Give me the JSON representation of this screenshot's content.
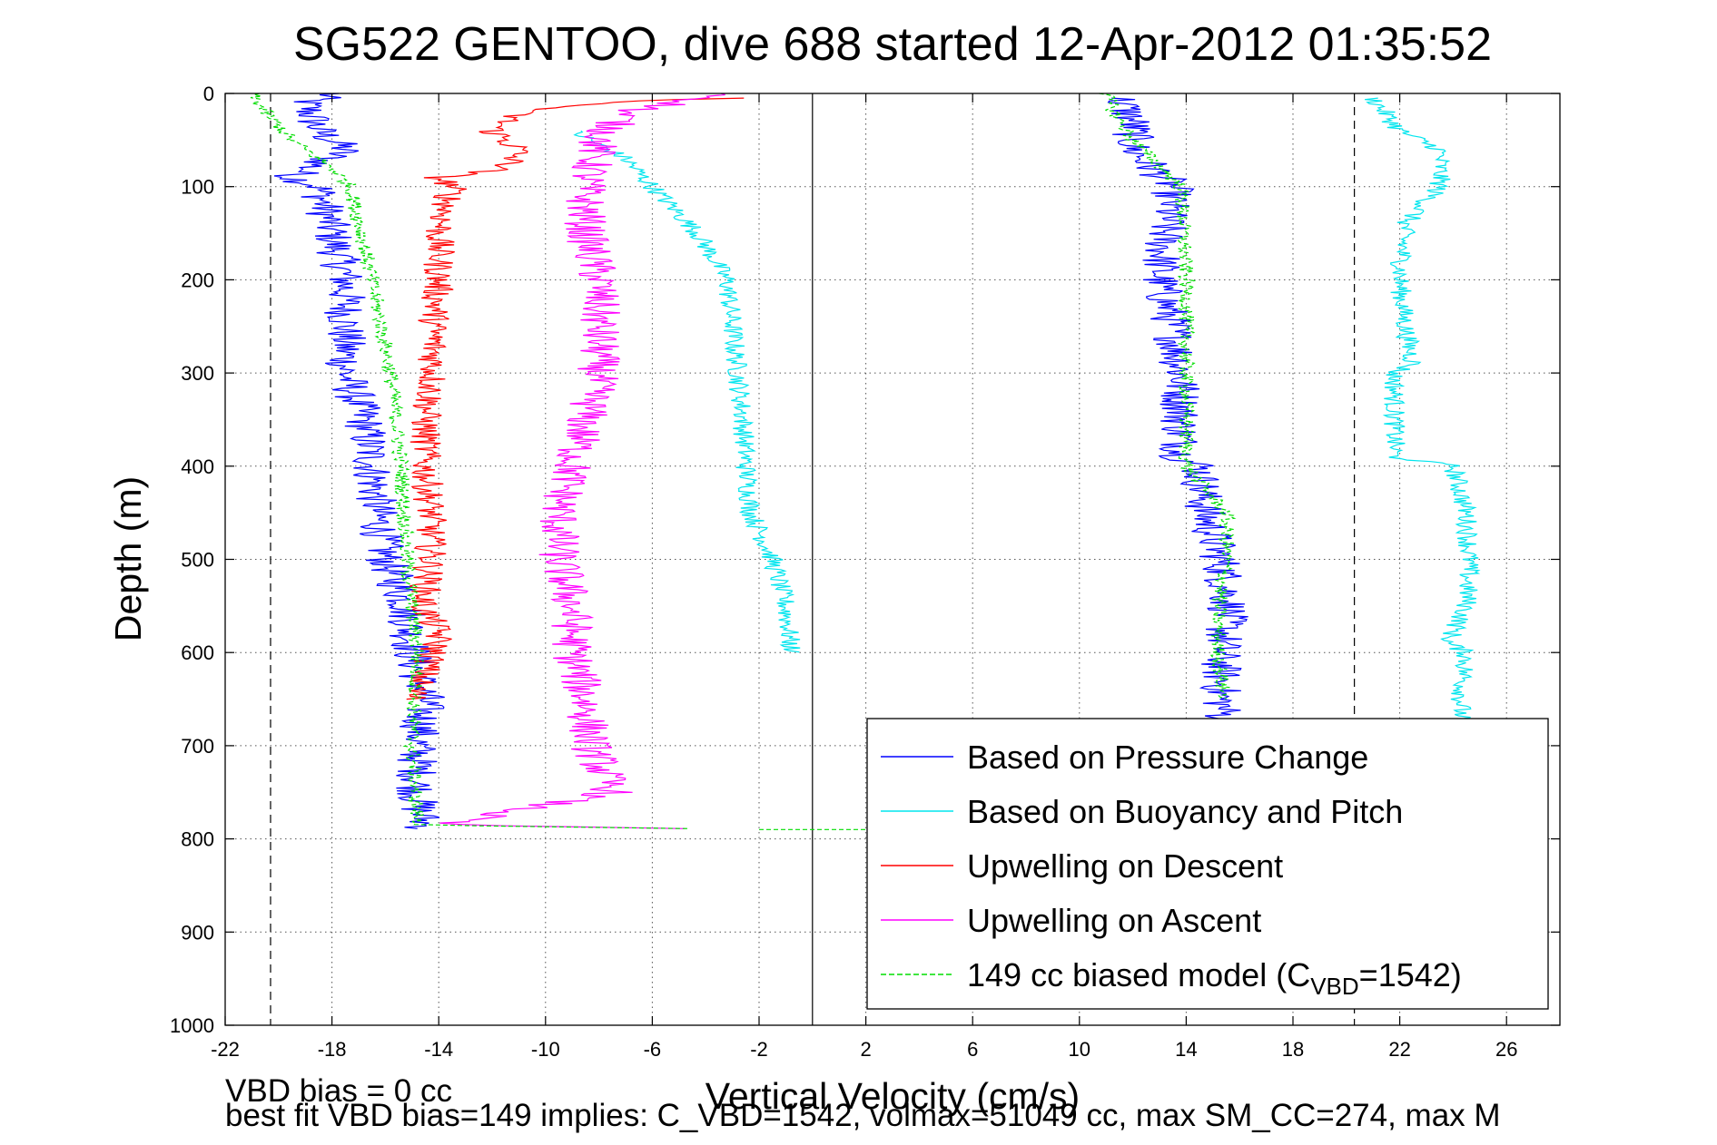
{
  "chart_data": {
    "type": "line",
    "title": "SG522 GENTOO, dive 688 started 12-Apr-2012 01:35:52",
    "xlabel": "Vertical Velocity (cm/s)",
    "ylabel": "Depth (m)",
    "xlim": [
      -22,
      28
    ],
    "ylim": [
      0,
      1000
    ],
    "y_reversed": true,
    "grid": true,
    "legend_position": "bottom-right",
    "xticks": [
      -22,
      -18,
      -14,
      -10,
      -6,
      -2,
      2,
      6,
      10,
      14,
      18,
      22,
      26
    ],
    "xtick_labels": [
      "-22",
      "-18",
      "-14",
      "-10",
      "-6",
      "-2",
      "2",
      "6",
      "10",
      "14",
      "18",
      "22",
      "26"
    ],
    "yticks": [
      0,
      100,
      200,
      300,
      400,
      500,
      600,
      700,
      800,
      900,
      1000
    ],
    "ytick_labels": [
      "0",
      "100",
      "200",
      "300",
      "400",
      "500",
      "600",
      "700",
      "800",
      "900",
      "1000"
    ],
    "reference_lines": [
      {
        "x": -20.3,
        "style": "dashed"
      },
      {
        "x": 0,
        "style": "solid"
      },
      {
        "x": 20.3,
        "style": "dashed"
      }
    ],
    "series": [
      {
        "name": "Based on Pressure Change",
        "color": "#0000ff",
        "style": "solid",
        "noise": 0.8,
        "segments": [
          {
            "depth": [
              0,
              10,
              40,
              60,
              90,
              100,
              150,
              200,
              250,
              300,
              350,
              400,
              450,
              500,
              550,
              600,
              650,
              700,
              760,
              790
            ],
            "velocity": [
              -18,
              -19,
              -18.5,
              -17.5,
              -19.5,
              -18.5,
              -18,
              -17.5,
              -17.5,
              -17.5,
              -16.8,
              -16.5,
              -16.3,
              -16,
              -15.2,
              -15,
              -14.5,
              -14.8,
              -14.8,
              -14.5
            ]
          },
          {
            "depth": [
              5,
              30,
              60,
              100,
              150,
              200,
              250,
              300,
              350,
              390,
              400,
              450,
              500,
              550,
              600,
              650,
              680
            ],
            "velocity": [
              11.5,
              12,
              12,
              13.5,
              13.2,
              13,
              13.5,
              13.8,
              13.8,
              13.8,
              14.5,
              14.7,
              15.3,
              15.6,
              15.3,
              15.3,
              15.5
            ]
          }
        ]
      },
      {
        "name": "Based on Buoyancy and Pitch",
        "color": "#00e5ee",
        "style": "solid",
        "noise": 0.4,
        "segments": [
          {
            "depth": [
              40,
              70,
              100,
              150,
              200,
              250,
              300,
              350,
              400,
              450,
              500,
              550,
              600
            ],
            "velocity": [
              -9,
              -7,
              -6,
              -4.3,
              -3.2,
              -3,
              -2.8,
              -2.6,
              -2.5,
              -2.3,
              -1.5,
              -1,
              -0.8
            ]
          },
          {
            "depth": [
              5,
              40,
              60,
              100,
              140,
              200,
              250,
              290,
              300,
              390,
              400,
              450,
              500,
              550,
              590,
              600,
              650,
              680
            ],
            "velocity": [
              21,
              22,
              23.5,
              23.5,
              22.2,
              22,
              22.2,
              22.5,
              21.8,
              21.8,
              24,
              24.5,
              24.6,
              24.5,
              23.8,
              24.5,
              24.3,
              24.3
            ]
          }
        ]
      },
      {
        "name": "Upwelling on Descent",
        "color": "#ff0000",
        "style": "solid",
        "noise": 0.6,
        "segments": [
          {
            "depth": [
              5,
              10,
              20,
              40,
              60,
              80,
              90,
              100,
              150,
              200,
              250,
              300,
              350,
              400,
              450,
              500,
              550,
              580,
              600,
              650
            ],
            "velocity": [
              -3,
              -8,
              -11,
              -12,
              -11,
              -11.5,
              -14,
              -13.5,
              -14,
              -14,
              -14.2,
              -14.2,
              -14.5,
              -14.5,
              -14.3,
              -14.3,
              -14.6,
              -14,
              -14.2,
              -15
            ]
          }
        ]
      },
      {
        "name": "Upwelling on Ascent",
        "color": "#ff00ff",
        "style": "solid",
        "noise": 0.8,
        "segments": [
          {
            "depth": [
              0,
              20,
              50,
              100,
              150,
              200,
              250,
              300,
              350,
              400,
              450,
              500,
              550,
              600,
              650,
              700,
              750,
              785,
              790
            ],
            "velocity": [
              -3,
              -7,
              -8,
              -8.5,
              -8.5,
              -8,
              -8,
              -8,
              -8.5,
              -9,
              -9.5,
              -9.5,
              -9,
              -9,
              -8.5,
              -8.3,
              -7.5,
              -14,
              -2
            ]
          }
        ]
      },
      {
        "name": "149 cc biased model (C_VBD=1542)",
        "color": "#00dd00",
        "style": "dashed",
        "noise": 0.3,
        "segments": [
          {
            "depth": [
              0,
              20,
              50,
              80,
              100,
              200,
              300,
              400,
              500,
              550,
              600,
              700,
              785,
              790
            ],
            "velocity": [
              -21,
              -20.5,
              -19.5,
              -18,
              -17.3,
              -16.5,
              -15.8,
              -15.4,
              -15.2,
              -15,
              -14.8,
              -15,
              -14.8,
              -2
            ]
          },
          {
            "depth": [
              790,
              790
            ],
            "velocity": [
              -2,
              2
            ]
          },
          {
            "depth": [
              0,
              20,
              50,
              100,
              200,
              300,
              350,
              400,
              450,
              500,
              550,
              600,
              650
            ],
            "velocity": [
              11,
              11.3,
              12,
              13.8,
              14,
              14,
              14,
              14,
              15.5,
              15.5,
              15.2,
              15.2,
              15.4
            ]
          }
        ]
      }
    ],
    "legend": [
      {
        "text": "Based on Pressure Change",
        "color": "#0000ff",
        "dash": false
      },
      {
        "text": "Based on Buoyancy and Pitch",
        "color": "#00e5ee",
        "dash": false
      },
      {
        "text": "Upwelling on Descent",
        "color": "#ff0000",
        "dash": false
      },
      {
        "text": "Upwelling on Ascent",
        "color": "#ff00ff",
        "dash": false
      },
      {
        "text_before": "149 cc biased model (C",
        "subscript": "VBD",
        "text_after": "=1542)",
        "color": "#00dd00",
        "dash": true
      }
    ],
    "footer_line1": "VBD bias = 0 cc",
    "footer_line2": "best fit VBD bias=149 implies: C_VBD=1542, volmax=51049 cc, max SM_CC=274, max M"
  }
}
